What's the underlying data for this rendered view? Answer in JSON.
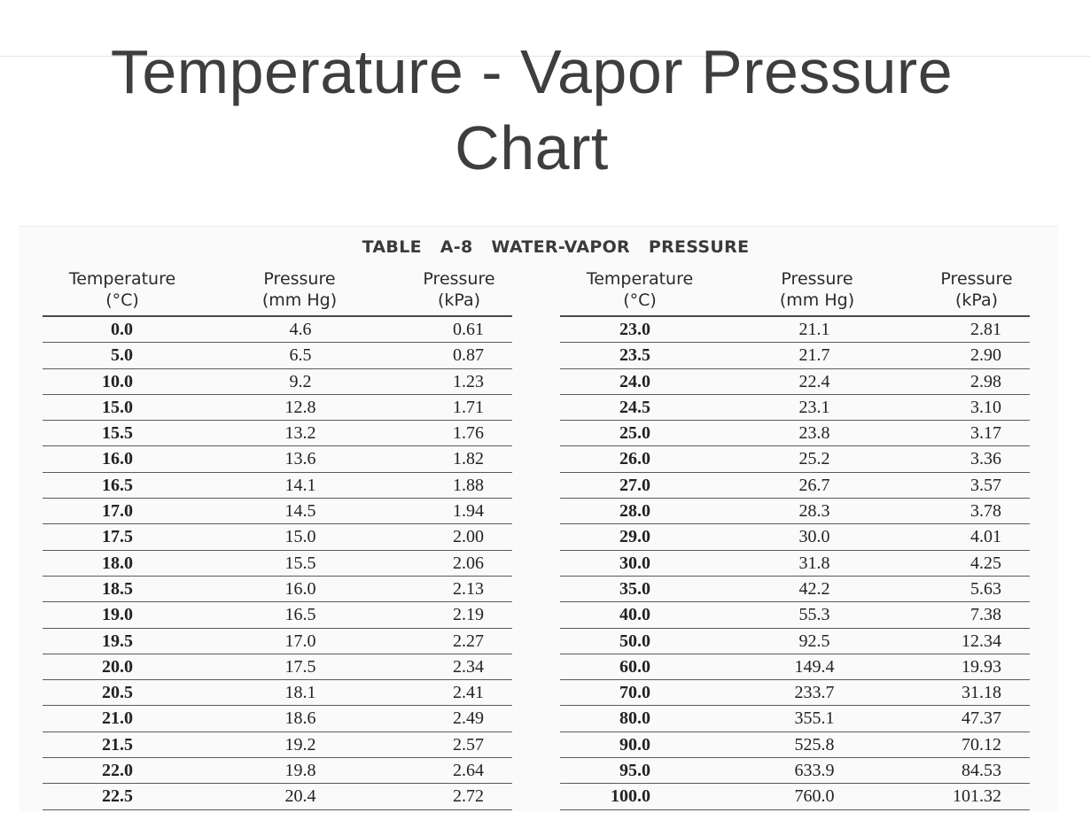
{
  "title_line1": "Temperature - Vapor Pressure",
  "title_line2": "Chart",
  "table": {
    "caption": "TABLE A-8  WATER-VAPOR PRESSURE",
    "headers": [
      "Temperature\n(°C)",
      "Pressure\n(mm Hg)",
      "Pressure\n(kPa)"
    ],
    "left_rows": [
      [
        "0.0",
        "4.6",
        "0.61"
      ],
      [
        "5.0",
        "6.5",
        "0.87"
      ],
      [
        "10.0",
        "9.2",
        "1.23"
      ],
      [
        "15.0",
        "12.8",
        "1.71"
      ],
      [
        "15.5",
        "13.2",
        "1.76"
      ],
      [
        "16.0",
        "13.6",
        "1.82"
      ],
      [
        "16.5",
        "14.1",
        "1.88"
      ],
      [
        "17.0",
        "14.5",
        "1.94"
      ],
      [
        "17.5",
        "15.0",
        "2.00"
      ],
      [
        "18.0",
        "15.5",
        "2.06"
      ],
      [
        "18.5",
        "16.0",
        "2.13"
      ],
      [
        "19.0",
        "16.5",
        "2.19"
      ],
      [
        "19.5",
        "17.0",
        "2.27"
      ],
      [
        "20.0",
        "17.5",
        "2.34"
      ],
      [
        "20.5",
        "18.1",
        "2.41"
      ],
      [
        "21.0",
        "18.6",
        "2.49"
      ],
      [
        "21.5",
        "19.2",
        "2.57"
      ],
      [
        "22.0",
        "19.8",
        "2.64"
      ],
      [
        "22.5",
        "20.4",
        "2.72"
      ]
    ],
    "right_rows": [
      [
        "23.0",
        "21.1",
        "2.81"
      ],
      [
        "23.5",
        "21.7",
        "2.90"
      ],
      [
        "24.0",
        "22.4",
        "2.98"
      ],
      [
        "24.5",
        "23.1",
        "3.10"
      ],
      [
        "25.0",
        "23.8",
        "3.17"
      ],
      [
        "26.0",
        "25.2",
        "3.36"
      ],
      [
        "27.0",
        "26.7",
        "3.57"
      ],
      [
        "28.0",
        "28.3",
        "3.78"
      ],
      [
        "29.0",
        "30.0",
        "4.01"
      ],
      [
        "30.0",
        "31.8",
        "4.25"
      ],
      [
        "35.0",
        "42.2",
        "5.63"
      ],
      [
        "40.0",
        "55.3",
        "7.38"
      ],
      [
        "50.0",
        "92.5",
        "12.34"
      ],
      [
        "60.0",
        "149.4",
        "19.93"
      ],
      [
        "70.0",
        "233.7",
        "31.18"
      ],
      [
        "80.0",
        "355.1",
        "47.37"
      ],
      [
        "90.0",
        "525.8",
        "70.12"
      ],
      [
        "95.0",
        "633.9",
        "84.53"
      ],
      [
        "100.0",
        "760.0",
        "101.32"
      ]
    ]
  }
}
